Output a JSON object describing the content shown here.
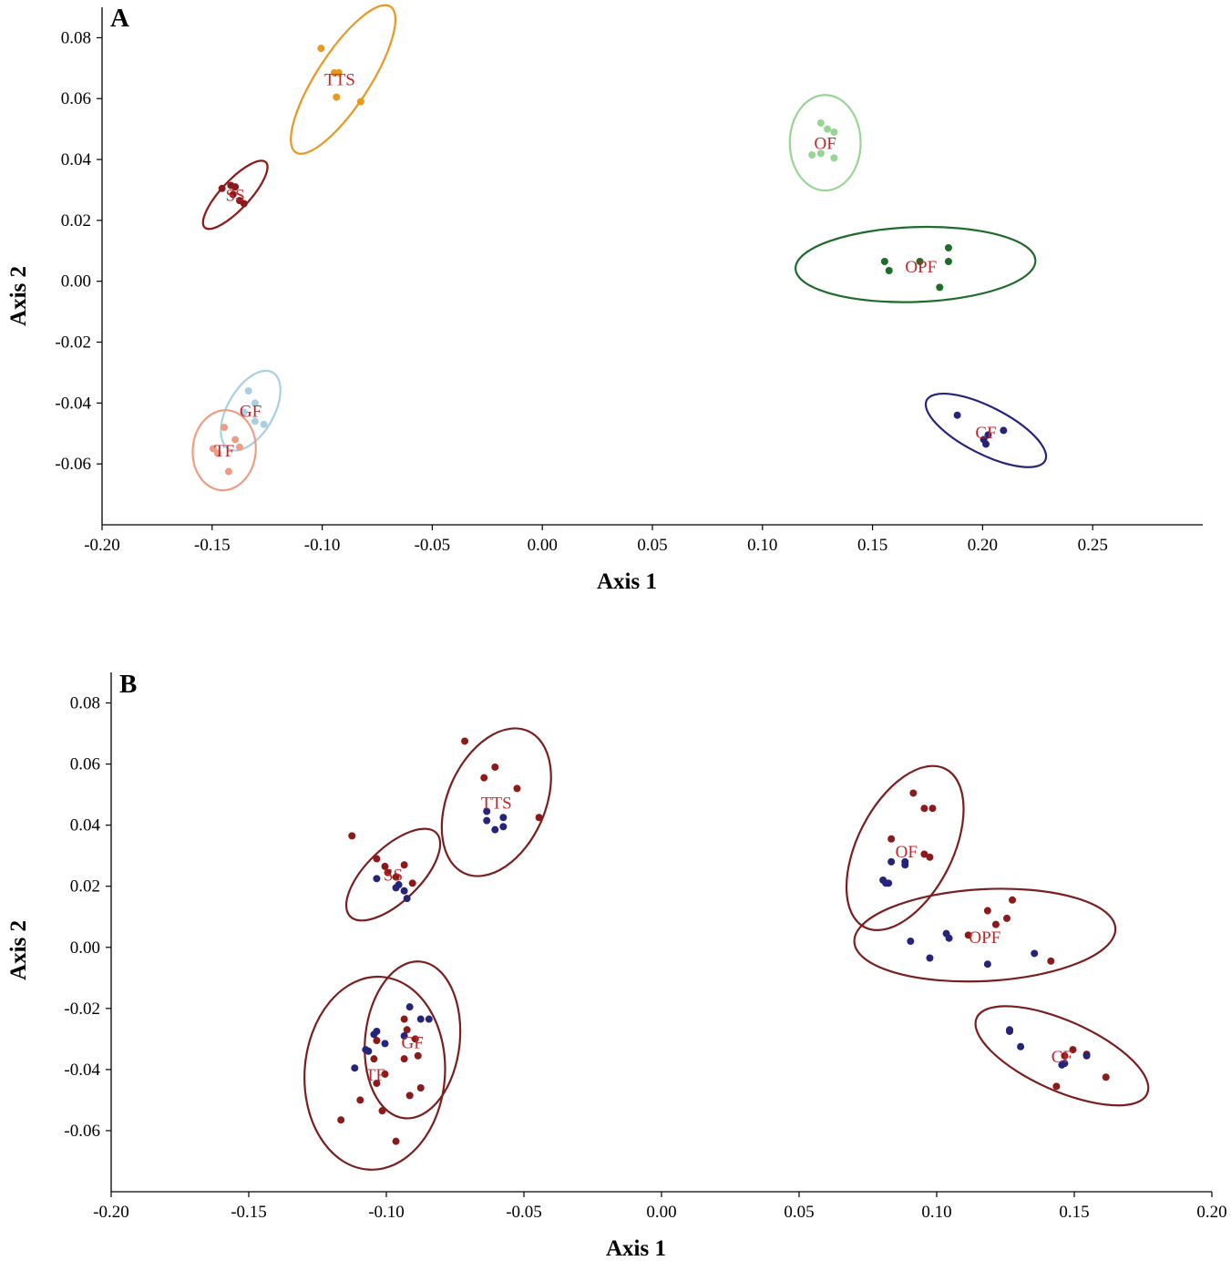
{
  "chart_data": [
    {
      "type": "scatter",
      "panel_label": "A",
      "xlabel": "Axis 1",
      "ylabel": "Axis 2",
      "xlim": [
        -0.2,
        0.3
      ],
      "ylim": [
        -0.08,
        0.09
      ],
      "x_ticks": [
        -0.2,
        -0.15,
        -0.1,
        -0.05,
        0.0,
        0.05,
        0.1,
        0.15,
        0.2,
        0.25
      ],
      "x_tick_labels": [
        "-0.20",
        "-0.15",
        "-0.10",
        "-0.05",
        "0.00",
        "0.05",
        "0.10",
        "0.15",
        "0.20",
        "0.25"
      ],
      "y_ticks": [
        -0.06,
        -0.04,
        -0.02,
        0.0,
        0.02,
        0.04,
        0.06,
        0.08
      ],
      "y_tick_labels": [
        "-0.06",
        "-0.04",
        "-0.02",
        "0.00",
        "0.02",
        "0.04",
        "0.06",
        "0.08"
      ],
      "grid": false,
      "groups": [
        {
          "label": "TTS",
          "color": "#e8971f",
          "label_at": [
            -0.092,
            0.0665
          ],
          "ellipse": {
            "cx": -0.0905,
            "cy": 0.0663,
            "rx": 0.0395,
            "ry": 0.012,
            "angle_deg": -57
          },
          "points": [
            [
              -0.1005,
              0.0765
            ],
            [
              -0.0945,
              0.0685
            ],
            [
              -0.0925,
              0.0685
            ],
            [
              -0.0935,
              0.0605
            ],
            [
              -0.0825,
              0.059
            ]
          ]
        },
        {
          "label": "SS",
          "color": "#8b1a1a",
          "label_at": [
            -0.1395,
            0.0285
          ],
          "ellipse": {
            "cx": -0.1395,
            "cy": 0.0284,
            "rx": 0.0203,
            "ry": 0.0065,
            "angle_deg": -47
          },
          "points": [
            [
              -0.1455,
              0.0305
            ],
            [
              -0.1415,
              0.0315
            ],
            [
              -0.1395,
              0.031
            ],
            [
              -0.1375,
              0.0265
            ],
            [
              -0.1355,
              0.0255
            ],
            [
              -0.1405,
              0.0285
            ]
          ]
        },
        {
          "label": "GF",
          "color": "#a9cfe3",
          "label_at": [
            -0.1325,
            -0.0425
          ],
          "ellipse": {
            "cx": -0.1325,
            "cy": -0.0425,
            "rx": 0.02,
            "ry": 0.0105,
            "angle_deg": -60
          },
          "points": [
            [
              -0.1335,
              -0.036
            ],
            [
              -0.1305,
              -0.04
            ],
            [
              -0.1265,
              -0.047
            ],
            [
              -0.1355,
              -0.043
            ],
            [
              -0.1305,
              -0.046
            ]
          ]
        },
        {
          "label": "TF",
          "color": "#ee9d85",
          "label_at": [
            -0.1445,
            -0.0555
          ],
          "ellipse": {
            "cx": -0.1445,
            "cy": -0.0555,
            "rx": 0.0182,
            "ry": 0.0143,
            "angle_deg": -85
          },
          "points": [
            [
              -0.1445,
              -0.048
            ],
            [
              -0.1395,
              -0.052
            ],
            [
              -0.1375,
              -0.0545
            ],
            [
              -0.1495,
              -0.055
            ],
            [
              -0.1475,
              -0.0565
            ],
            [
              -0.1425,
              -0.0625
            ]
          ]
        },
        {
          "label": "OF",
          "color": "#98d594",
          "label_at": [
            0.1285,
            0.0455
          ],
          "ellipse": {
            "cx": 0.1285,
            "cy": 0.0455,
            "rx": 0.0217,
            "ry": 0.0161,
            "angle_deg": -90
          },
          "points": [
            [
              0.1265,
              0.052
            ],
            [
              0.1295,
              0.05
            ],
            [
              0.1325,
              0.049
            ],
            [
              0.1225,
              0.0415
            ],
            [
              0.1265,
              0.042
            ],
            [
              0.1325,
              0.0405
            ]
          ]
        },
        {
          "label": "OPF",
          "color": "#1e6b2a",
          "label_at": [
            0.172,
            0.005
          ],
          "ellipse": {
            "cx": 0.1695,
            "cy": 0.0055,
            "rx": 0.0545,
            "ry": 0.017,
            "angle_deg": -2
          },
          "points": [
            [
              0.1555,
              0.0065
            ],
            [
              0.1575,
              0.0035
            ],
            [
              0.1715,
              0.0065
            ],
            [
              0.1845,
              0.011
            ],
            [
              0.1845,
              0.0065
            ],
            [
              0.1805,
              -0.002
            ]
          ]
        },
        {
          "label": "CF",
          "color": "#25247a",
          "label_at": [
            0.2015,
            -0.0495
          ],
          "ellipse": {
            "cx": 0.2015,
            "cy": -0.049,
            "rx": 0.0302,
            "ry": 0.0107,
            "angle_deg": 27
          },
          "points": [
            [
              0.1885,
              -0.044
            ],
            [
              0.2095,
              -0.049
            ],
            [
              0.2025,
              -0.0505
            ],
            [
              0.2005,
              -0.052
            ],
            [
              0.2015,
              -0.0535
            ]
          ]
        }
      ]
    },
    {
      "type": "scatter",
      "panel_label": "B",
      "xlabel": "Axis 1",
      "ylabel": "Axis 2",
      "xlim": [
        -0.2,
        0.2
      ],
      "ylim": [
        -0.08,
        0.09
      ],
      "x_ticks": [
        -0.2,
        -0.15,
        -0.1,
        -0.05,
        0.0,
        0.05,
        0.1,
        0.15,
        0.2
      ],
      "x_tick_labels": [
        "-0.20",
        "-0.15",
        "-0.10",
        "-0.05",
        "0.00",
        "0.05",
        "0.10",
        "0.15",
        "0.20"
      ],
      "y_ticks": [
        -0.06,
        -0.04,
        -0.02,
        0.0,
        0.02,
        0.04,
        0.06,
        0.08
      ],
      "y_tick_labels": [
        "-0.06",
        "-0.04",
        "-0.02",
        "0.00",
        "0.02",
        "0.04",
        "0.06",
        "0.08"
      ],
      "grid": false,
      "ellipse_color": "#7a1f1f",
      "point_colors": [
        "#8b1a1a",
        "#25247a"
      ],
      "groups": [
        {
          "label": "TTS",
          "label_at": [
            -0.06,
            0.0475
          ],
          "ellipse": {
            "cx": -0.06,
            "cy": 0.0475,
            "rx": 0.0283,
            "ry": 0.0177,
            "angle_deg": -66
          },
          "points_red": [
            [
              -0.0715,
              0.0675
            ],
            [
              -0.0605,
              0.059
            ],
            [
              -0.0645,
              0.0555
            ],
            [
              -0.0525,
              0.052
            ],
            [
              -0.0445,
              0.0425
            ]
          ],
          "points_blue": [
            [
              -0.0635,
              0.0445
            ],
            [
              -0.0635,
              0.0415
            ],
            [
              -0.0575,
              0.0425
            ],
            [
              -0.0605,
              0.0385
            ],
            [
              -0.0575,
              0.0395
            ]
          ]
        },
        {
          "label": "SS",
          "label_at": [
            -0.0975,
            0.024
          ],
          "ellipse": {
            "cx": -0.0975,
            "cy": 0.0238,
            "rx": 0.0218,
            "ry": 0.0097,
            "angle_deg": -44
          },
          "points_red": [
            [
              -0.1125,
              0.0365
            ],
            [
              -0.1035,
              0.029
            ],
            [
              -0.1005,
              0.0265
            ],
            [
              -0.0935,
              0.027
            ],
            [
              -0.0965,
              0.023
            ],
            [
              -0.0905,
              0.021
            ],
            [
              -0.0995,
              0.0245
            ]
          ],
          "points_blue": [
            [
              -0.1035,
              0.0225
            ],
            [
              -0.0965,
              0.0195
            ],
            [
              -0.0955,
              0.0205
            ],
            [
              -0.0935,
              0.0185
            ],
            [
              -0.0925,
              0.016
            ]
          ]
        },
        {
          "label": "GF",
          "label_at": [
            -0.0905,
            -0.031
          ],
          "ellipse": {
            "cx": -0.0905,
            "cy": -0.0303,
            "rx": 0.0286,
            "ry": 0.0172,
            "angle_deg": -84
          },
          "points_red": [
            [
              -0.0935,
              -0.0235
            ],
            [
              -0.0925,
              -0.027
            ],
            [
              -0.0895,
              -0.03
            ],
            [
              -0.0885,
              -0.0355
            ],
            [
              -0.0935,
              -0.0365
            ],
            [
              -0.0875,
              -0.046
            ],
            [
              -0.0915,
              -0.0485
            ]
          ],
          "points_blue": [
            [
              -0.0915,
              -0.0195
            ],
            [
              -0.0875,
              -0.0235
            ],
            [
              -0.0845,
              -0.0235
            ],
            [
              -0.0935,
              -0.029
            ]
          ]
        },
        {
          "label": "TF",
          "label_at": [
            -0.104,
            -0.0415
          ],
          "ellipse": {
            "cx": -0.1042,
            "cy": -0.0412,
            "rx": 0.0351,
            "ry": 0.0255,
            "angle_deg": -86
          },
          "points_red": [
            [
              -0.1045,
              -0.0365
            ],
            [
              -0.1005,
              -0.0415
            ],
            [
              -0.1035,
              -0.0445
            ],
            [
              -0.1095,
              -0.05
            ],
            [
              -0.1015,
              -0.0535
            ],
            [
              -0.1165,
              -0.0565
            ],
            [
              -0.0965,
              -0.0635
            ],
            [
              -0.1035,
              -0.0305
            ]
          ],
          "points_blue": [
            [
              -0.1035,
              -0.0275
            ],
            [
              -0.1045,
              -0.0285
            ],
            [
              -0.1005,
              -0.0315
            ],
            [
              -0.1075,
              -0.0335
            ],
            [
              -0.1065,
              -0.034
            ],
            [
              -0.1115,
              -0.0395
            ]
          ]
        },
        {
          "label": "OF",
          "label_at": [
            0.089,
            0.0315
          ],
          "ellipse": {
            "cx": 0.0885,
            "cy": 0.0325,
            "rx": 0.0323,
            "ry": 0.0173,
            "angle_deg": -63
          },
          "points_red": [
            [
              0.0915,
              0.0505
            ],
            [
              0.0955,
              0.0455
            ],
            [
              0.0985,
              0.0455
            ],
            [
              0.0835,
              0.0355
            ],
            [
              0.0955,
              0.0305
            ],
            [
              0.0975,
              0.0295
            ]
          ],
          "points_blue": [
            [
              0.0835,
              0.028
            ],
            [
              0.0885,
              0.028
            ],
            [
              0.0885,
              0.027
            ],
            [
              0.0805,
              0.022
            ],
            [
              0.0815,
              0.021
            ],
            [
              0.0825,
              0.021
            ]
          ]
        },
        {
          "label": "OPF",
          "label_at": [
            0.1175,
            0.0035
          ],
          "ellipse": {
            "cx": 0.1175,
            "cy": 0.004,
            "rx": 0.0475,
            "ry": 0.0167,
            "angle_deg": -3
          },
          "points_red": [
            [
              0.1275,
              0.0155
            ],
            [
              0.1185,
              0.012
            ],
            [
              0.1215,
              0.0075
            ],
            [
              0.1255,
              0.0095
            ],
            [
              0.1115,
              0.004
            ],
            [
              0.1415,
              -0.0045
            ]
          ],
          "points_blue": [
            [
              0.1035,
              0.0045
            ],
            [
              0.1045,
              0.003
            ],
            [
              0.0905,
              0.002
            ],
            [
              0.0975,
              -0.0035
            ],
            [
              0.1185,
              -0.0055
            ],
            [
              0.1355,
              -0.002
            ]
          ]
        },
        {
          "label": "CF",
          "label_at": [
            0.1455,
            -0.0355
          ],
          "ellipse": {
            "cx": 0.1455,
            "cy": -0.0355,
            "rx": 0.0339,
            "ry": 0.0127,
            "angle_deg": 24
          },
          "points_red": [
            [
              0.1495,
              -0.0335
            ],
            [
              0.1465,
              -0.0355
            ],
            [
              0.1615,
              -0.0425
            ],
            [
              0.1435,
              -0.0455
            ],
            [
              0.1545,
              -0.035
            ]
          ],
          "points_blue": [
            [
              0.1265,
              -0.027
            ],
            [
              0.1265,
              -0.0275
            ],
            [
              0.1305,
              -0.0325
            ],
            [
              0.1465,
              -0.038
            ],
            [
              0.1455,
              -0.0385
            ],
            [
              0.1545,
              -0.0355
            ]
          ]
        }
      ]
    }
  ]
}
